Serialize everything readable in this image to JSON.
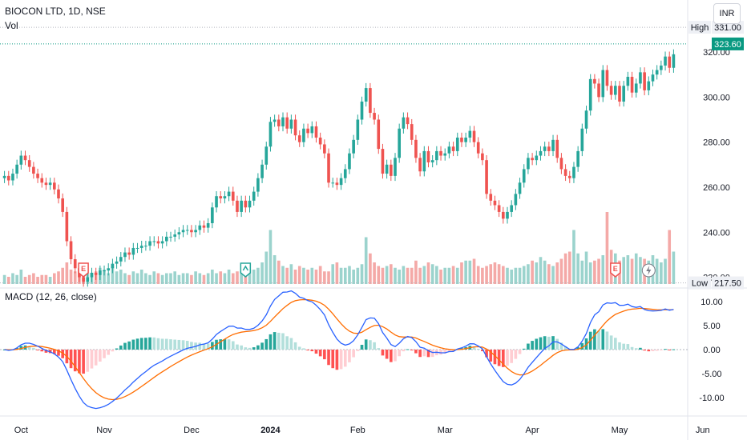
{
  "header": {
    "title": "BIOCON LTD, 1D, NSE",
    "volume_label": "Vol",
    "macd_label": "MACD (12, 26, close)",
    "currency_button": "INR"
  },
  "price_tags": {
    "high_label": "High",
    "high_value": "331.00",
    "last_value": "323.60",
    "low_label": "Low",
    "low_value": "217.50"
  },
  "colors": {
    "up": "#26a69a",
    "down": "#ef5350",
    "vol_up": "#9bd3cd",
    "vol_down": "#f4a9a7",
    "macd_line": "#2962ff",
    "signal_line": "#ff6d00",
    "hist_up_strong": "#26a69a",
    "hist_up_weak": "#b2dfdb",
    "hist_down_strong": "#ff5252",
    "hist_down_weak": "#ffcdd2",
    "last_price_tag": "#089981"
  },
  "icons": {
    "earnings_marker": "E",
    "dividend_marker": "split-arrow-icon",
    "flash_marker": "lightning-icon"
  },
  "chart_data": [
    {
      "type": "candlestick",
      "title": "BIOCON LTD, 1D, NSE",
      "x_ticks": [
        "Oct",
        "Nov",
        "Dec",
        "2024",
        "Feb",
        "Mar",
        "Apr",
        "May",
        "Jun"
      ],
      "y_ticks": [
        "320.00",
        "300.00",
        "280.00",
        "260.00",
        "240.00",
        "220.00"
      ],
      "ylim": [
        217,
        336
      ],
      "series": [
        {
          "name": "price",
          "close": [
            265,
            263,
            266,
            270,
            274,
            272,
            269,
            266,
            264,
            262,
            261,
            262,
            259,
            255,
            249,
            236,
            228,
            224,
            220,
            218,
            220,
            222,
            221,
            223,
            223,
            224,
            226,
            227,
            229,
            231,
            230,
            233,
            233,
            234,
            234,
            236,
            236,
            235,
            236,
            238,
            238,
            239,
            240,
            241,
            241,
            240,
            241,
            243,
            242,
            244,
            251,
            256,
            255,
            256,
            258,
            254,
            249,
            254,
            251,
            254,
            258,
            264,
            270,
            278,
            289,
            290,
            287,
            291,
            286,
            290,
            283,
            280,
            286,
            284,
            287,
            282,
            279,
            275,
            262,
            262,
            261,
            264,
            268,
            275,
            281,
            290,
            298,
            304,
            293,
            290,
            277,
            266,
            270,
            265,
            273,
            286,
            291,
            288,
            281,
            273,
            267,
            276,
            271,
            272,
            276,
            274,
            275,
            278,
            276,
            282,
            280,
            282,
            285,
            280,
            275,
            272,
            257,
            254,
            252,
            249,
            246,
            249,
            252,
            257,
            262,
            268,
            273,
            272,
            274,
            276,
            278,
            276,
            281,
            273,
            268,
            265,
            264,
            269,
            276,
            286,
            294,
            308,
            306,
            300,
            312,
            305,
            301,
            305,
            298,
            305,
            309,
            302,
            306,
            311,
            303,
            307,
            310,
            312,
            314,
            318,
            313,
            319
          ]
        }
      ]
    },
    {
      "type": "bar",
      "title": "Vol",
      "series": [
        {
          "name": "volume",
          "values": [
            5,
            4,
            6,
            5,
            8,
            4,
            5,
            6,
            4,
            5,
            5,
            4,
            6,
            7,
            9,
            12,
            8,
            7,
            6,
            5,
            6,
            6,
            7,
            9,
            8,
            6,
            10,
            7,
            8,
            6,
            5,
            7,
            6,
            8,
            6,
            5,
            7,
            6,
            5,
            6,
            6,
            7,
            5,
            6,
            6,
            5,
            7,
            6,
            5,
            6,
            8,
            6,
            7,
            6,
            8,
            6,
            7,
            7,
            6,
            8,
            8,
            9,
            12,
            18,
            30,
            16,
            13,
            10,
            9,
            11,
            8,
            10,
            9,
            8,
            9,
            8,
            10,
            7,
            7,
            11,
            12,
            9,
            9,
            10,
            8,
            9,
            11,
            26,
            17,
            12,
            10,
            9,
            10,
            11,
            9,
            8,
            10,
            9,
            9,
            13,
            9,
            10,
            12,
            11,
            10,
            8,
            9,
            9,
            10,
            9,
            12,
            13,
            13,
            14,
            10,
            9,
            10,
            11,
            12,
            11,
            10,
            9,
            8,
            9,
            9,
            10,
            11,
            13,
            12,
            15,
            13,
            11,
            10,
            12,
            14,
            17,
            18,
            30,
            17,
            13,
            18,
            12,
            13,
            14,
            16,
            40,
            19,
            17,
            13,
            15,
            16,
            14,
            17,
            15,
            14,
            13,
            16,
            14,
            12,
            14,
            30,
            18
          ]
        }
      ]
    },
    {
      "type": "line",
      "title": "MACD (12, 26, close)",
      "y_ticks": [
        "10.00",
        "5.00",
        "0.00",
        "-5.00",
        "-10.00"
      ],
      "ylim": [
        -13,
        12
      ],
      "series": [
        {
          "name": "MACD"
        },
        {
          "name": "Signal"
        },
        {
          "name": "Histogram"
        }
      ]
    }
  ]
}
